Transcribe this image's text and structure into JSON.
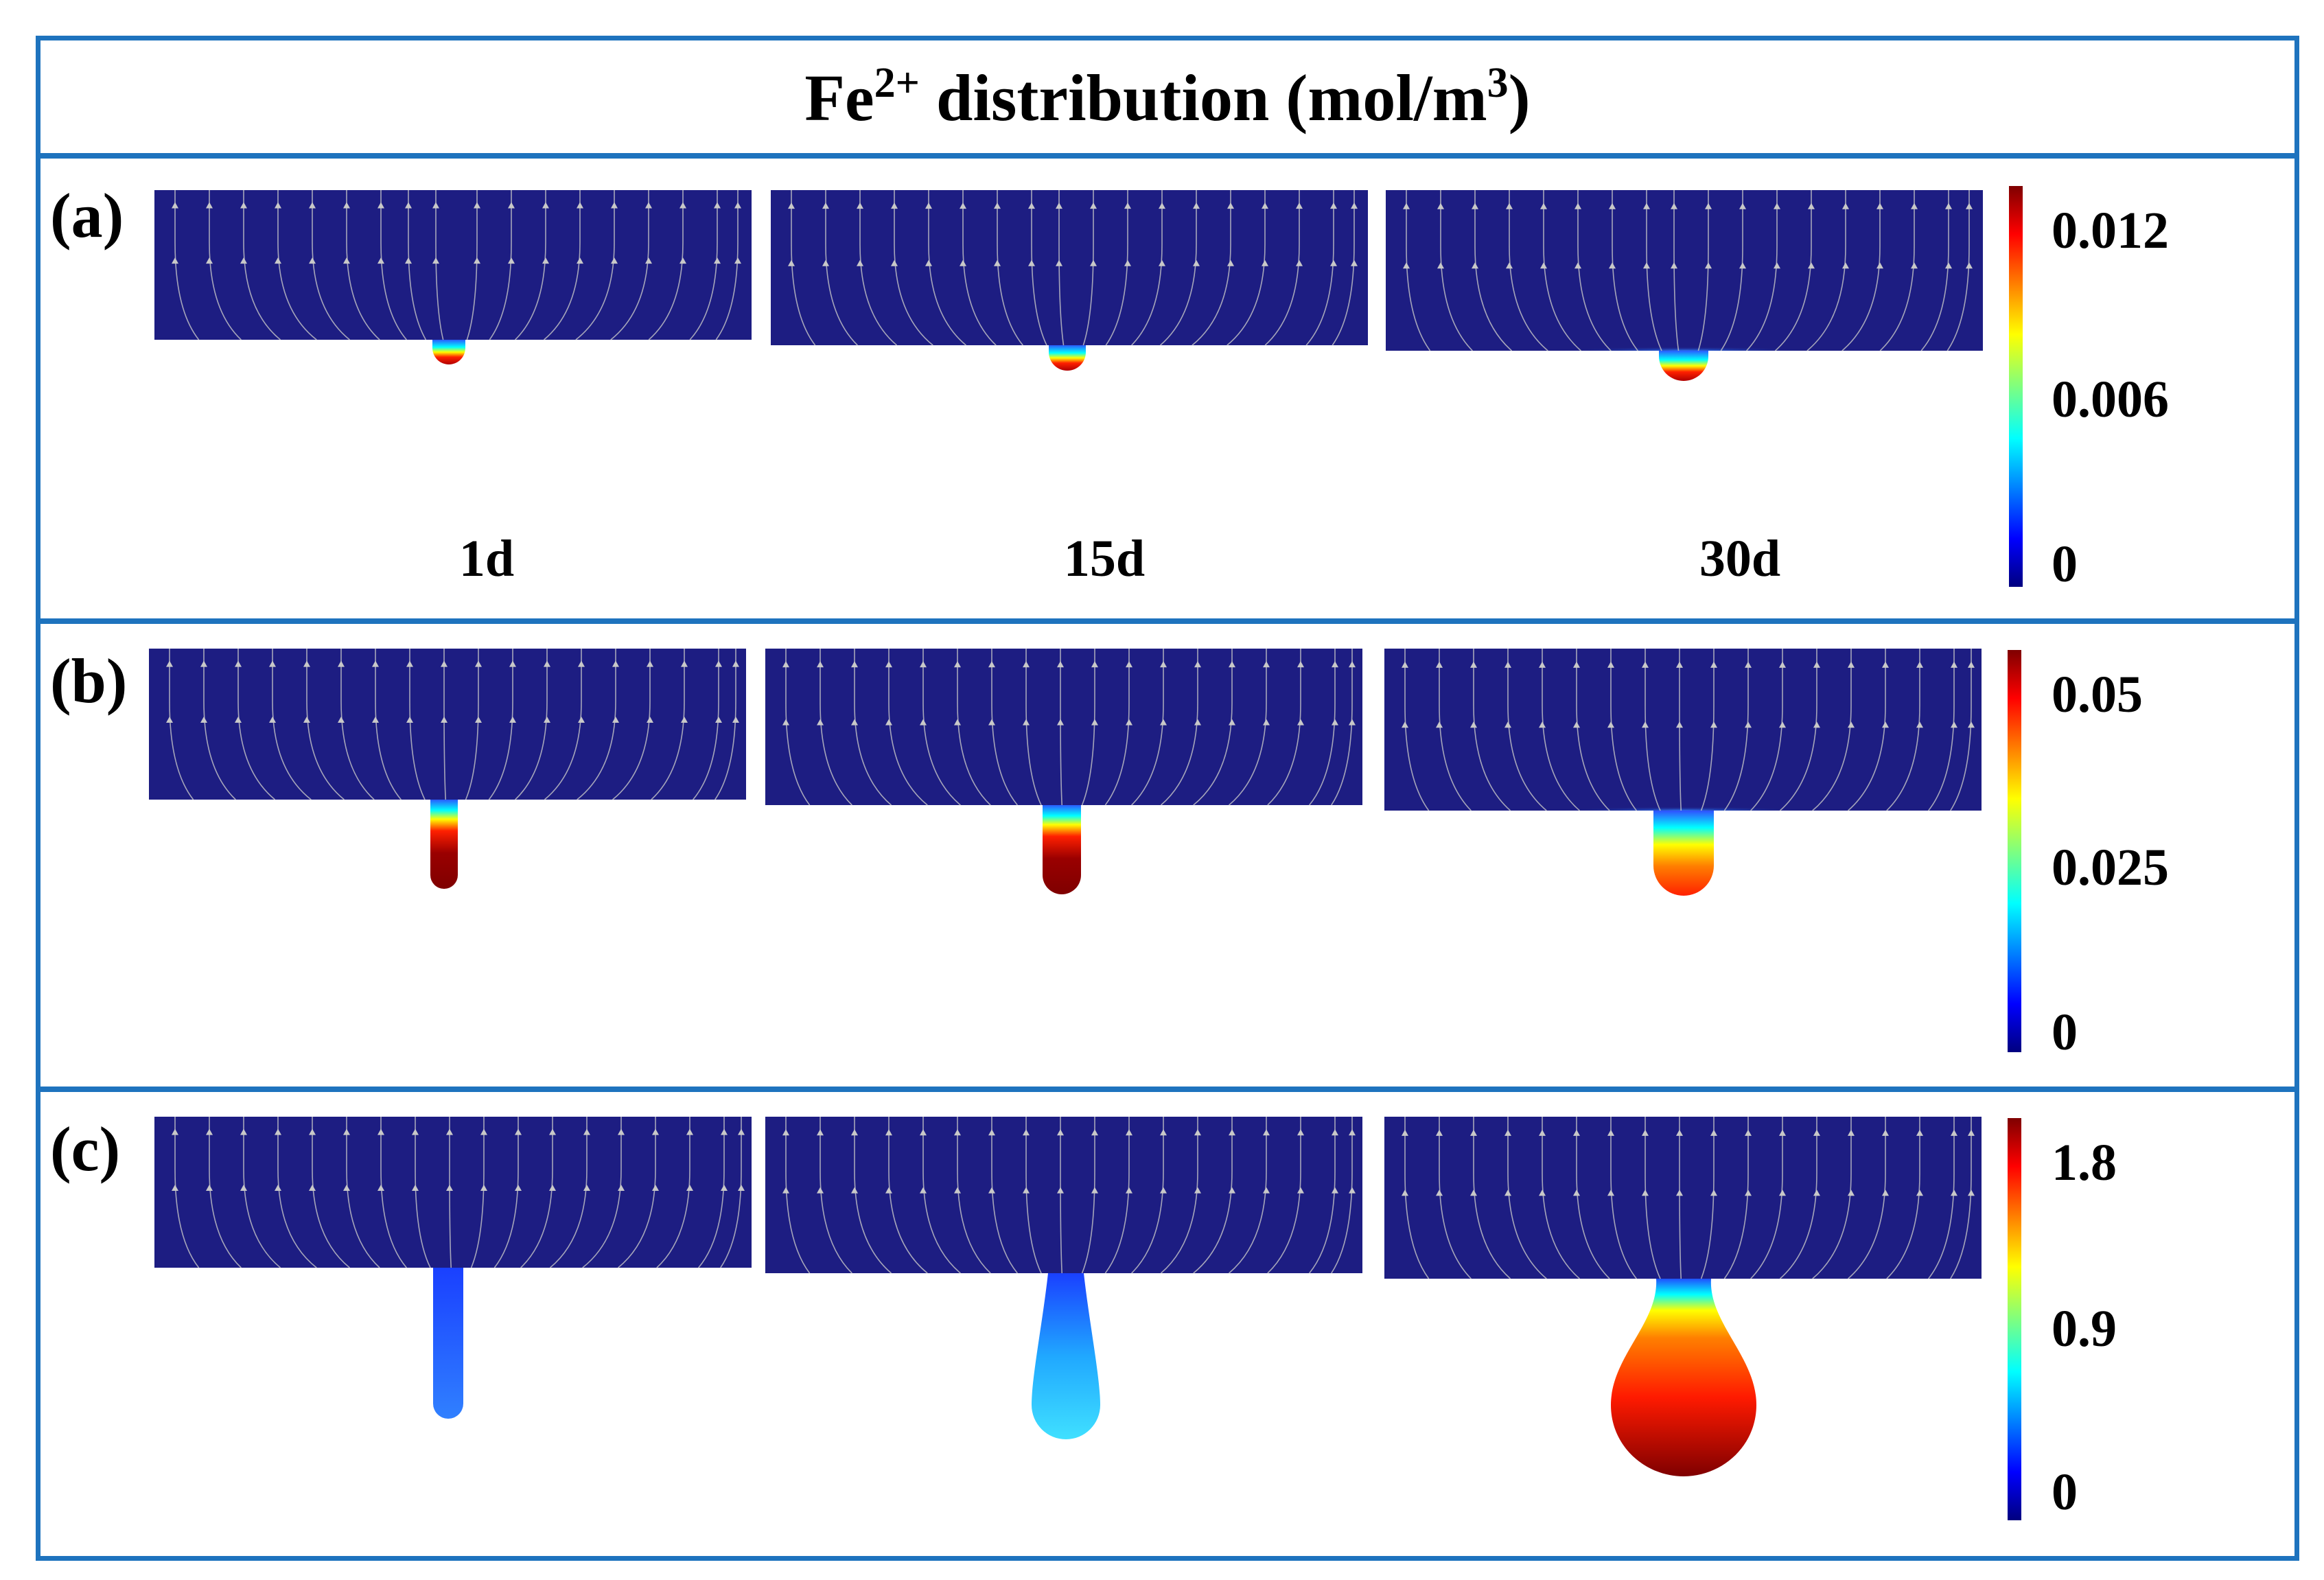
{
  "title": {
    "main": "Fe",
    "sup1": "2+",
    "rest": " distribution (mol/m",
    "sup2": "3",
    "end": ")"
  },
  "rows": [
    {
      "label": "(a)",
      "colorbar_ticks": [
        "0.012",
        "0.006",
        "0"
      ],
      "days": [
        "1d",
        "15d",
        "30d"
      ]
    },
    {
      "label": "(b)",
      "colorbar_ticks": [
        "0.05",
        "0.025",
        "0"
      ]
    },
    {
      "label": "(c)",
      "colorbar_ticks": [
        "1.8",
        "0.9",
        "0"
      ]
    }
  ],
  "colors": {
    "frame": "#1e73be",
    "field": "#1d1d82",
    "streamline": "#c8c8c8",
    "jet": [
      "#00007f",
      "#0000ff",
      "#007fff",
      "#00ffff",
      "#7fff7f",
      "#ffff00",
      "#ff7f00",
      "#ff0000",
      "#7f0000"
    ]
  }
}
